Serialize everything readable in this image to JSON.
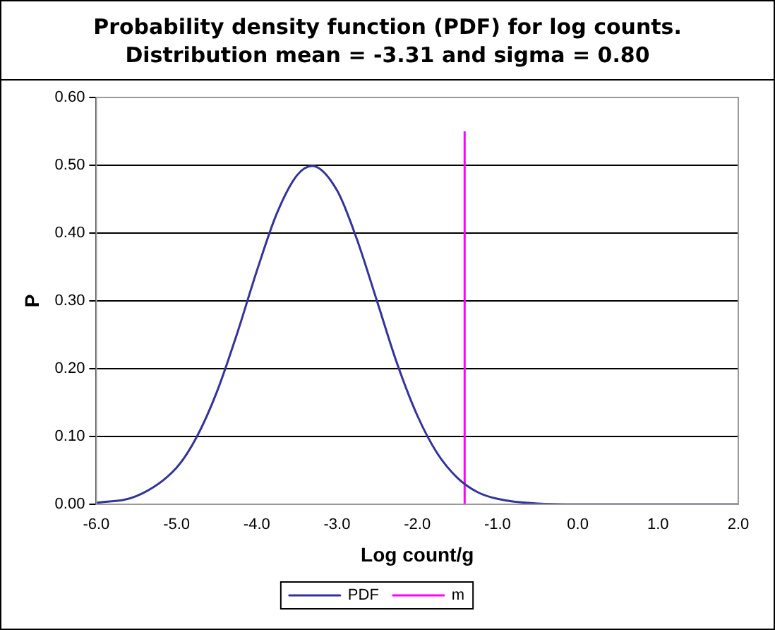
{
  "chart_data": {
    "type": "line",
    "title": "Probability density function (PDF) for log counts.",
    "subtitle": "Distribution mean = -3.31 and sigma = 0.80",
    "xlabel": "Log count/g",
    "ylabel": "P",
    "series": [
      {
        "name": "PDF",
        "color": "#333399",
        "x": [
          -6,
          -5.5,
          -5,
          -4.75,
          -4.5,
          -4.25,
          -4,
          -3.75,
          -3.5,
          -3.31,
          -3,
          -2.75,
          -2.5,
          -2.25,
          -2,
          -1.75,
          -1.5,
          -1.25,
          -1,
          -0.5,
          0,
          1,
          2
        ],
        "values": [
          0.002,
          0.012,
          0.054,
          0.099,
          0.165,
          0.25,
          0.344,
          0.429,
          0.485,
          0.499,
          0.463,
          0.39,
          0.299,
          0.207,
          0.131,
          0.075,
          0.039,
          0.018,
          0.008,
          0.001,
          0,
          0,
          0
        ]
      },
      {
        "name": "m",
        "color": "#ff00ff",
        "x": [
          -1.41,
          -1.41
        ],
        "values": [
          0,
          0.55
        ]
      }
    ],
    "xlim": [
      -6,
      2
    ],
    "ylim": [
      0,
      0.6
    ],
    "xticks": [
      {
        "value": -6,
        "label": "-6.0"
      },
      {
        "value": -5,
        "label": "-5.0"
      },
      {
        "value": -4,
        "label": "-4.0"
      },
      {
        "value": -3,
        "label": "-3.0"
      },
      {
        "value": -2,
        "label": "-2.0"
      },
      {
        "value": -1,
        "label": "-1.0"
      },
      {
        "value": 0,
        "label": "0.0"
      },
      {
        "value": 1,
        "label": "1.0"
      },
      {
        "value": 2,
        "label": "2.0"
      }
    ],
    "yticks": [
      {
        "value": 0,
        "label": "0.00"
      },
      {
        "value": 0.1,
        "label": "0.10"
      },
      {
        "value": 0.2,
        "label": "0.20"
      },
      {
        "value": 0.3,
        "label": "0.30"
      },
      {
        "value": 0.4,
        "label": "0.40"
      },
      {
        "value": 0.5,
        "label": "0.50"
      },
      {
        "value": 0.6,
        "label": "0.60"
      }
    ],
    "grid": "y",
    "legend": "bottom",
    "marker": "none",
    "line_style": "solid"
  }
}
